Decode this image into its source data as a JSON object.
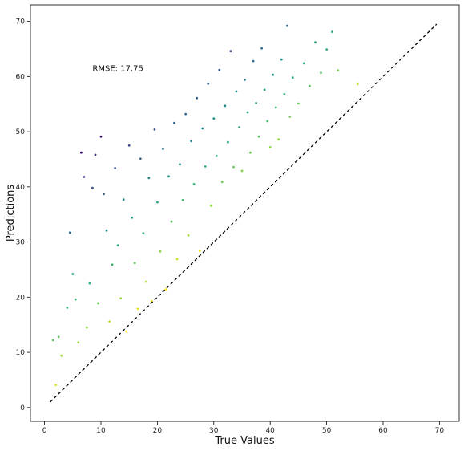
{
  "chart_data": {
    "type": "scatter",
    "title": "",
    "xlabel": "True Values",
    "ylabel": "Predictions",
    "xlim": [
      -2.5,
      73.5
    ],
    "ylim": [
      -2.5,
      73
    ],
    "xticks": [
      0,
      10,
      20,
      30,
      40,
      50,
      60,
      70
    ],
    "yticks": [
      0,
      10,
      20,
      30,
      40,
      50,
      60,
      70
    ],
    "grid": false,
    "legend": "none",
    "annotation": {
      "text": "RMSE: 17.75",
      "x": 8.5,
      "y": 61
    },
    "reference_line": {
      "x": [
        1,
        69.5
      ],
      "y": [
        1,
        69.5
      ],
      "style": "dashed",
      "color": "#000000"
    },
    "colormap": {
      "name": "viridis",
      "stops": [
        "#fde725",
        "#90d743",
        "#35b779",
        "#21918c",
        "#31688e",
        "#443983",
        "#440154"
      ]
    },
    "series": [
      {
        "name": "",
        "points": [
          [
            1.5,
            12.2
          ],
          [
            2,
            4.1
          ],
          [
            2.5,
            12.8
          ],
          [
            3,
            9.4
          ],
          [
            4,
            18.1
          ],
          [
            4.5,
            31.7
          ],
          [
            5,
            24.2
          ],
          [
            5.5,
            19.6
          ],
          [
            6,
            11.8
          ],
          [
            6.5,
            46.2
          ],
          [
            7,
            41.8
          ],
          [
            7.5,
            14.5
          ],
          [
            8,
            22.5
          ],
          [
            8.5,
            39.8
          ],
          [
            9,
            45.8
          ],
          [
            9.5,
            18.9
          ],
          [
            10,
            49.1
          ],
          [
            10.5,
            38.7
          ],
          [
            11,
            32.1
          ],
          [
            11.5,
            15.6
          ],
          [
            12,
            25.9
          ],
          [
            12.5,
            43.4
          ],
          [
            13,
            29.4
          ],
          [
            13.5,
            19.8
          ],
          [
            14,
            37.7
          ],
          [
            14.5,
            13.8
          ],
          [
            15,
            47.5
          ],
          [
            15.5,
            34.4
          ],
          [
            16,
            26.2
          ],
          [
            16.5,
            17.9
          ],
          [
            17,
            45.1
          ],
          [
            17.5,
            31.6
          ],
          [
            18,
            22.8
          ],
          [
            18.5,
            41.6
          ],
          [
            19,
            19.3
          ],
          [
            19.5,
            50.4
          ],
          [
            20,
            37.2
          ],
          [
            20.5,
            28.3
          ],
          [
            21,
            46.9
          ],
          [
            21.5,
            21.4
          ],
          [
            22,
            41.9
          ],
          [
            22.5,
            33.7
          ],
          [
            23,
            51.6
          ],
          [
            23.5,
            26.9
          ],
          [
            24,
            44.1
          ],
          [
            24.5,
            37.6
          ],
          [
            25,
            53.2
          ],
          [
            25.5,
            31.2
          ],
          [
            26,
            48.3
          ],
          [
            26.5,
            40.5
          ],
          [
            27,
            56.1
          ],
          [
            27.5,
            28.4
          ],
          [
            28,
            50.6
          ],
          [
            28.5,
            43.7
          ],
          [
            29,
            58.7
          ],
          [
            29.5,
            36.6
          ],
          [
            30,
            52.4
          ],
          [
            30.5,
            45.6
          ],
          [
            31,
            61.2
          ],
          [
            31.5,
            40.9
          ],
          [
            32,
            54.7
          ],
          [
            32.5,
            48.1
          ],
          [
            33,
            64.6
          ],
          [
            33.5,
            43.6
          ],
          [
            34,
            57.3
          ],
          [
            34.5,
            50.8
          ],
          [
            35,
            42.9
          ],
          [
            35.5,
            59.4
          ],
          [
            36,
            53.5
          ],
          [
            36.5,
            46.2
          ],
          [
            37,
            62.8
          ],
          [
            37.5,
            55.2
          ],
          [
            38,
            49.1
          ],
          [
            38.5,
            65.1
          ],
          [
            39,
            57.6
          ],
          [
            39.5,
            51.9
          ],
          [
            40,
            47.2
          ],
          [
            40.5,
            60.3
          ],
          [
            41,
            54.4
          ],
          [
            41.5,
            48.6
          ],
          [
            42,
            63.1
          ],
          [
            42.5,
            56.8
          ],
          [
            43,
            69.2
          ],
          [
            43.5,
            52.7
          ],
          [
            44,
            59.8
          ],
          [
            45,
            55.1
          ],
          [
            46,
            62.4
          ],
          [
            47,
            58.3
          ],
          [
            48,
            66.2
          ],
          [
            49,
            60.7
          ],
          [
            50,
            64.9
          ],
          [
            51,
            68.1
          ],
          [
            52,
            61.1
          ],
          [
            55.5,
            58.6
          ]
        ]
      }
    ]
  }
}
